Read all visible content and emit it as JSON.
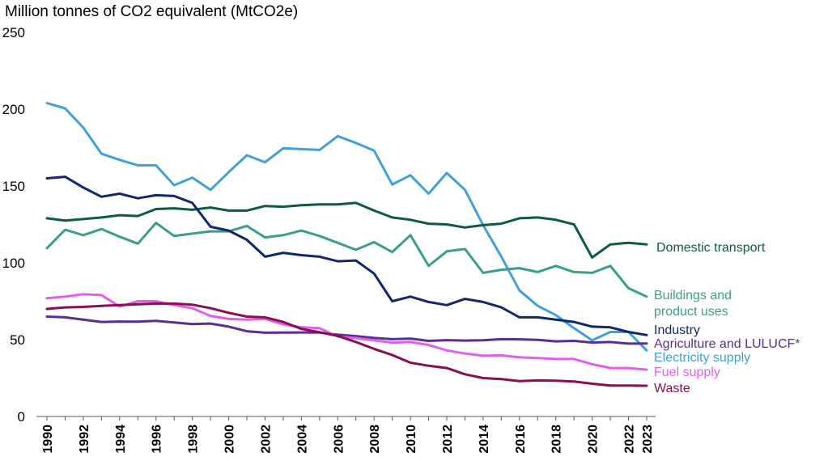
{
  "chart_data": {
    "type": "line",
    "title": "",
    "ylabel": "Million tonnes of CO2 equivalent (MtCO2e)",
    "xlabel": "",
    "ylim": [
      0,
      250
    ],
    "yticks": [
      0,
      50,
      100,
      150,
      200,
      250
    ],
    "xlim": [
      1990,
      2023
    ],
    "xticks": [
      1990,
      1992,
      1994,
      1996,
      1998,
      2000,
      2002,
      2004,
      2006,
      2008,
      2010,
      2012,
      2014,
      2016,
      2018,
      2020,
      2022,
      2023
    ],
    "grid": false,
    "legend": "direct labels at right end of lines",
    "x": [
      1990,
      1991,
      1992,
      1993,
      1994,
      1995,
      1996,
      1997,
      1998,
      1999,
      2000,
      2001,
      2002,
      2003,
      2004,
      2005,
      2006,
      2007,
      2008,
      2009,
      2010,
      2011,
      2012,
      2013,
      2014,
      2015,
      2016,
      2017,
      2018,
      2019,
      2020,
      2021,
      2022,
      2023
    ],
    "series": [
      {
        "name": "Electricity supply",
        "color": "#41a0dc",
        "values": [
          204,
          200.5,
          188,
          171,
          167,
          163.5,
          163.5,
          150.5,
          155.5,
          147.5,
          159,
          170,
          165.5,
          174.5,
          174,
          173.5,
          182.5,
          178,
          173,
          151,
          157,
          145,
          158.5,
          147.5,
          124.5,
          104,
          82,
          72,
          66,
          57.5,
          49.5,
          55,
          55,
          43
        ]
      },
      {
        "name": "Domestic transport",
        "color": "#0d5c3c",
        "values": [
          129,
          127.5,
          128.5,
          129.5,
          131,
          130.5,
          135,
          135.5,
          134.5,
          136,
          134,
          134,
          137,
          136.5,
          137.5,
          138,
          138,
          139,
          134,
          129.5,
          128,
          125.5,
          125,
          123,
          124.5,
          125.5,
          129,
          129.5,
          128,
          125,
          103.5,
          112,
          113,
          112
        ]
      },
      {
        "name": "Buildings and product uses",
        "color": "#3a9e8a",
        "values": [
          109.5,
          121.5,
          118,
          122,
          117,
          112.5,
          126,
          117.5,
          119,
          120.5,
          120.5,
          124,
          116.5,
          118,
          121,
          117.5,
          113,
          108.5,
          113.5,
          107,
          118,
          98,
          107.5,
          109,
          93.5,
          95.5,
          96.5,
          94,
          98,
          94,
          93.5,
          98,
          83.5,
          78
        ]
      },
      {
        "name": "Industry",
        "color": "#102870",
        "values": [
          155,
          156,
          149,
          143,
          145,
          142,
          144,
          143.5,
          139,
          123.5,
          121,
          115,
          104,
          106.5,
          105,
          104,
          101,
          101.5,
          93,
          75,
          78,
          74.5,
          72.5,
          76.5,
          74.5,
          71,
          64.5,
          64.5,
          63,
          61.5,
          58.5,
          58,
          55,
          53
        ]
      },
      {
        "name": "Agriculture and LULUCF*",
        "color": "#5a2e98",
        "values": [
          65,
          64.5,
          63,
          61.5,
          61.8,
          61.7,
          62.2,
          61.2,
          60.1,
          60.5,
          58.5,
          55.5,
          54.5,
          54.6,
          54.7,
          54.6,
          53.2,
          52.3,
          51.1,
          50.3,
          50.7,
          49.2,
          49.7,
          49.4,
          49.6,
          50.3,
          50.2,
          49.9,
          48.9,
          49.2,
          48.1,
          48.5,
          47.4,
          47.5
        ]
      },
      {
        "name": "Fuel supply",
        "color": "#e060ec",
        "values": [
          77,
          78,
          79.5,
          79,
          71.5,
          75,
          75,
          72.5,
          70.5,
          65.5,
          63.5,
          63,
          63.5,
          60,
          58,
          57.5,
          52,
          51,
          49.5,
          48,
          48.5,
          46.5,
          43,
          41,
          39.5,
          39.8,
          38.5,
          38,
          37.4,
          37.4,
          34,
          31.5,
          31.5,
          30.5
        ]
      },
      {
        "name": "Waste",
        "color": "#8b0e50",
        "values": [
          70,
          71,
          71.3,
          72,
          72.5,
          73,
          73.5,
          73.5,
          72.8,
          70.5,
          67.5,
          65,
          64.5,
          61.5,
          57,
          54.8,
          52.5,
          48.5,
          44,
          40,
          35,
          33,
          31.5,
          27.5,
          25,
          24.3,
          23,
          23.5,
          23.3,
          22.8,
          21.3,
          20.1,
          20.1,
          20
        ]
      }
    ]
  }
}
